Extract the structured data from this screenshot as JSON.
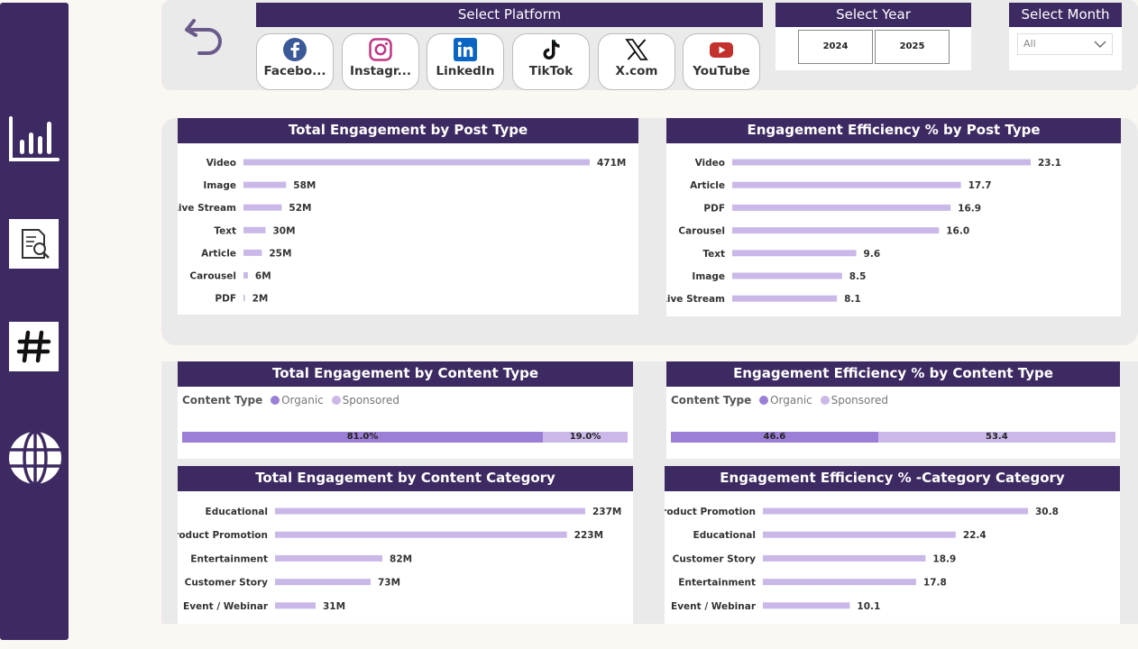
{
  "colors": {
    "brand": "#3e2a62",
    "bar": "#c9b8e8",
    "organic": "#9b7fd6",
    "sponsored": "#c9b8e8"
  },
  "nav": [
    {
      "icon": "bar-chart-icon"
    },
    {
      "icon": "report-search-icon"
    },
    {
      "icon": "hashtag-icon"
    },
    {
      "icon": "globe-icon"
    }
  ],
  "filters": {
    "back_icon": "undo-arrow-icon",
    "platform": {
      "title": "Select Platform",
      "items": [
        {
          "label": "Facebo...",
          "icon": "facebook-icon"
        },
        {
          "label": "Instagr...",
          "icon": "instagram-icon"
        },
        {
          "label": "LinkedIn",
          "icon": "linkedin-icon"
        },
        {
          "label": "TikTok",
          "icon": "tiktok-icon"
        },
        {
          "label": "X.com",
          "icon": "x-icon"
        },
        {
          "label": "YouTube",
          "icon": "youtube-icon"
        }
      ]
    },
    "year": {
      "title": "Select Year",
      "options": [
        "2024",
        "2025"
      ]
    },
    "month": {
      "title": "Select Month",
      "value": "All"
    }
  },
  "chart_data": [
    {
      "type": "bar",
      "title": "Total Engagement by Post Type",
      "categories": [
        "Video",
        "Image",
        "Live Stream",
        "Text",
        "Article",
        "Carousel",
        "PDF"
      ],
      "values": [
        471,
        58,
        52,
        30,
        25,
        6,
        2
      ],
      "value_labels": [
        "471M",
        "58M",
        "52M",
        "30M",
        "25M",
        "6M",
        "2M"
      ]
    },
    {
      "type": "bar",
      "title": "Engagement Efficiency % by Post Type",
      "categories": [
        "Video",
        "Article",
        "PDF",
        "Carousel",
        "Text",
        "Image",
        "Live Stream"
      ],
      "values": [
        23.1,
        17.7,
        16.9,
        16.0,
        9.6,
        8.5,
        8.1
      ],
      "value_labels": [
        "23.1",
        "17.7",
        "16.9",
        "16.0",
        "9.6",
        "8.5",
        "8.1"
      ]
    },
    {
      "type": "bar",
      "title": "Total Engagement by Content Type",
      "legend_title": "Content Type",
      "series": [
        {
          "name": "Organic",
          "values": [
            81.0
          ]
        },
        {
          "name": "Sponsored",
          "values": [
            19.0
          ]
        }
      ],
      "value_labels": [
        "81.0%",
        "19.0%"
      ]
    },
    {
      "type": "bar",
      "title": "Engagement Efficiency % by Content Type",
      "legend_title": "Content Type",
      "series": [
        {
          "name": "Organic",
          "values": [
            46.6
          ]
        },
        {
          "name": "Sponsored",
          "values": [
            53.4
          ]
        }
      ],
      "value_labels": [
        "46.6",
        "53.4"
      ]
    },
    {
      "type": "bar",
      "title": "Total Engagement by Content Category",
      "categories": [
        "Educational",
        "Product Promotion",
        "Entertainment",
        "Customer Story",
        "Event / Webinar"
      ],
      "values": [
        237,
        223,
        82,
        73,
        31
      ],
      "value_labels": [
        "237M",
        "223M",
        "82M",
        "73M",
        "31M"
      ]
    },
    {
      "type": "bar",
      "title": "Engagement Efficiency % -Category Category",
      "categories": [
        "Product Promotion",
        "Educational",
        "Customer Story",
        "Entertainment",
        "Event / Webinar"
      ],
      "values": [
        30.8,
        22.4,
        18.9,
        17.8,
        10.1
      ],
      "value_labels": [
        "30.8",
        "22.4",
        "18.9",
        "17.8",
        "10.1"
      ]
    }
  ]
}
